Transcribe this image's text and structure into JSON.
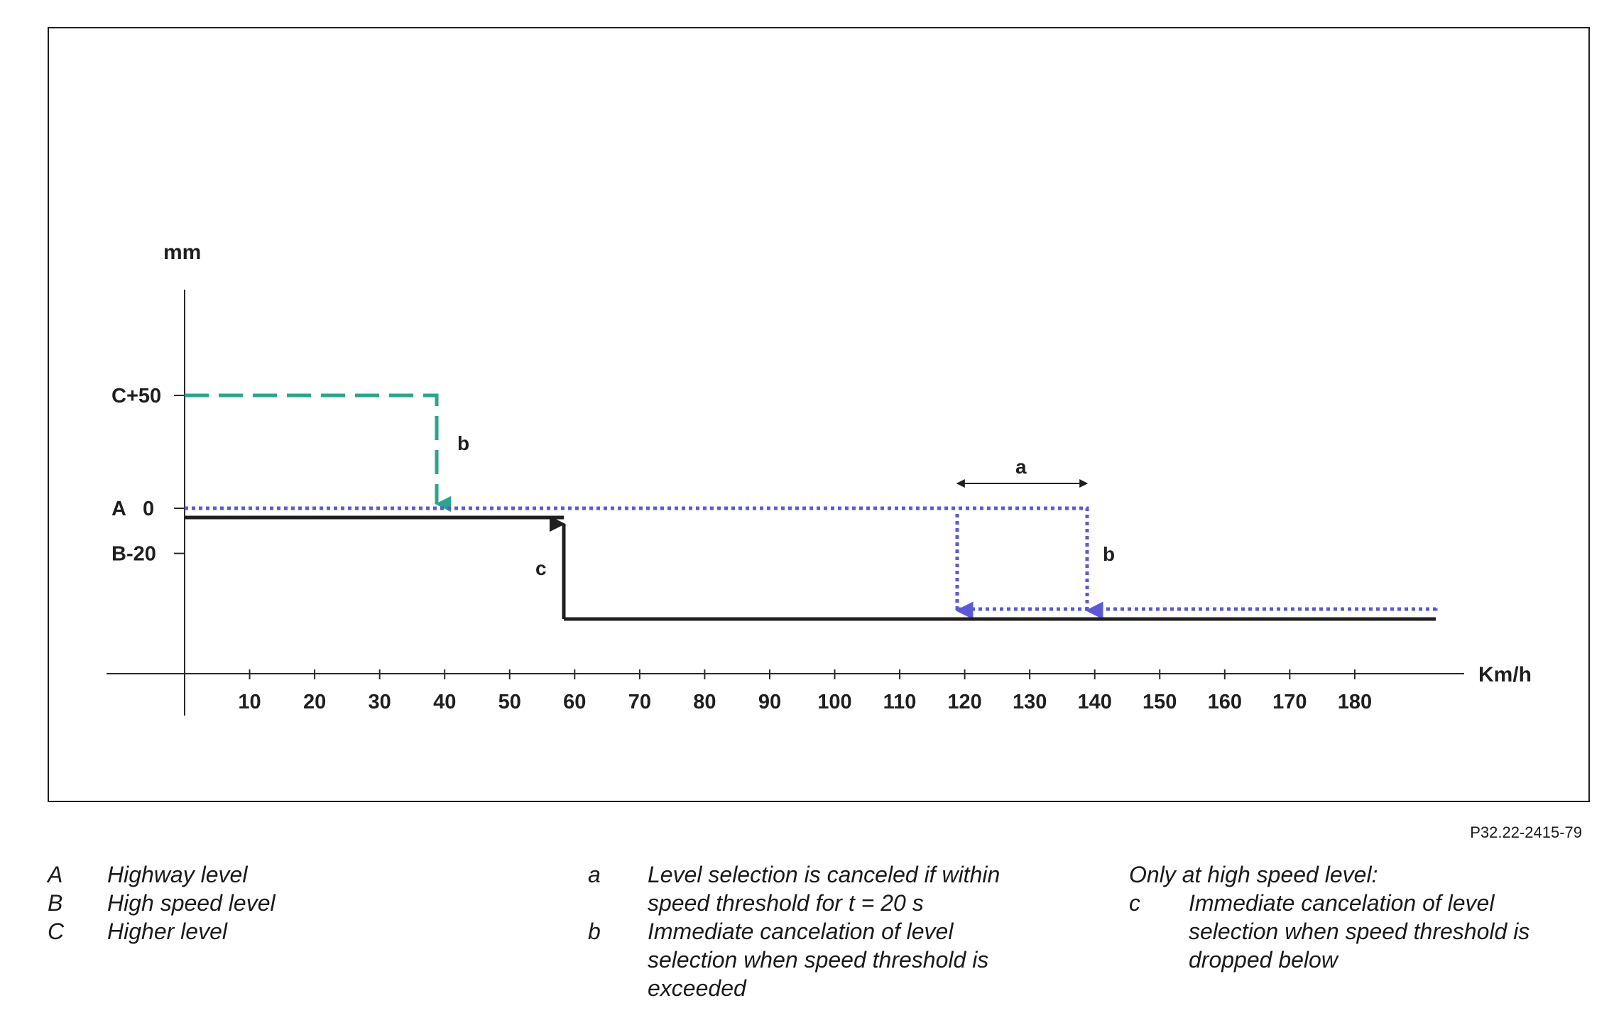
{
  "figure_code": "P32.22-2415-79",
  "axis": {
    "y_label": "mm",
    "x_label": "Km/h",
    "x_ticks": [
      "10",
      "20",
      "30",
      "40",
      "50",
      "60",
      "70",
      "80",
      "90",
      "100",
      "110",
      "120",
      "130",
      "140",
      "150",
      "160",
      "170",
      "180"
    ],
    "y_levels": [
      {
        "label": "C+50",
        "value": 50
      },
      {
        "label": "A   0",
        "value": 0
      },
      {
        "label": "B-20",
        "value": -20
      }
    ]
  },
  "annotations": {
    "b_upper": "b",
    "a_label": "a",
    "b_right": "b",
    "c_label": "c"
  },
  "colors": {
    "higher_level_line": "#2aa58e",
    "highway_level_line": "#5a5ad8",
    "high_speed_line": "#1f1f1f"
  },
  "legend": {
    "levels": [
      {
        "key": "A",
        "text": "Highway level"
      },
      {
        "key": "B",
        "text": "High speed level"
      },
      {
        "key": "C",
        "text": "Higher level"
      }
    ],
    "conditions": [
      {
        "key": "a",
        "text": "Level selection is canceled if within speed threshold for t = 20 s"
      },
      {
        "key": "b",
        "text": "Immediate cancelation of level selection when speed threshold is exceeded"
      }
    ],
    "high_speed_heading": "Only at high speed level:",
    "high_speed_items": [
      {
        "key": "c",
        "text": "Immediate cancelation of level selection when speed threshold is dropped below"
      }
    ]
  }
}
